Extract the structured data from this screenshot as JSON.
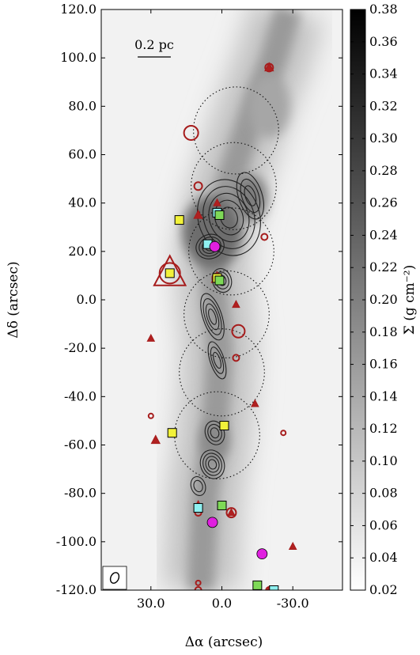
{
  "chart_data": {
    "type": "heatmap",
    "title": "",
    "xlabel": "Δα (arcsec)",
    "ylabel": "Δδ (arcsec)",
    "xlim": [
      51,
      -51
    ],
    "ylim": [
      -120,
      120
    ],
    "x_ticks": [
      {
        "value": 30,
        "label": "30.0"
      },
      {
        "value": 0,
        "label": "0.0"
      },
      {
        "value": -30,
        "label": "-30.0"
      }
    ],
    "y_ticks": [
      {
        "value": 120,
        "label": "120.0"
      },
      {
        "value": 100,
        "label": "100.0"
      },
      {
        "value": 80,
        "label": "80.0"
      },
      {
        "value": 60,
        "label": "60.0"
      },
      {
        "value": 40,
        "label": "40.0"
      },
      {
        "value": 20,
        "label": "20.0"
      },
      {
        "value": 0,
        "label": "0.0"
      },
      {
        "value": -20,
        "label": "-20.0"
      },
      {
        "value": -40,
        "label": "-40.0"
      },
      {
        "value": -60,
        "label": "-60.0"
      },
      {
        "value": -80,
        "label": "-80.0"
      },
      {
        "value": -100,
        "label": "-100.0"
      },
      {
        "value": -120,
        "label": "-120.0"
      }
    ],
    "colorbar": {
      "label": "Σ (g cm⁻²)",
      "range": [
        0.02,
        0.38
      ],
      "ticks": [
        "0.38",
        "0.36",
        "0.34",
        "0.32",
        "0.30",
        "0.28",
        "0.26",
        "0.24",
        "0.22",
        "0.20",
        "0.18",
        "0.16",
        "0.14",
        "0.12",
        "0.10",
        "0.08",
        "0.06",
        "0.04",
        "0.02"
      ]
    },
    "scale_bar": {
      "label": "0.2 pc",
      "length_arcsec": 14
    },
    "filament_ridge": [
      {
        "dd": 120,
        "da": -28
      },
      {
        "dd": 100,
        "da": -22
      },
      {
        "dd": 80,
        "da": -14
      },
      {
        "dd": 60,
        "da": -7
      },
      {
        "dd": 40,
        "da": 0
      },
      {
        "dd": 20,
        "da": 4
      },
      {
        "dd": 0,
        "da": 3
      },
      {
        "dd": -20,
        "da": 1
      },
      {
        "dd": -40,
        "da": 2
      },
      {
        "dd": -60,
        "da": 4
      },
      {
        "dd": -80,
        "da": 7
      },
      {
        "dd": -100,
        "da": 8
      },
      {
        "dd": -120,
        "da": 9
      }
    ],
    "fields": [
      {
        "da": -6,
        "dd": 70,
        "r": 18
      },
      {
        "da": -5,
        "dd": 47,
        "r": 18
      },
      {
        "da": -4,
        "dd": 20,
        "r": 18
      },
      {
        "da": -2,
        "dd": -6,
        "r": 18
      },
      {
        "da": 0,
        "dd": -30,
        "r": 18
      },
      {
        "da": 2,
        "dd": -56,
        "r": 18
      }
    ],
    "contours": [
      {
        "da": -3,
        "dd": 34,
        "w": 13,
        "h": 16,
        "n": 5
      },
      {
        "da": -12,
        "dd": 43,
        "w": 5,
        "h": 10,
        "n": 3
      },
      {
        "da": 5,
        "dd": 22,
        "w": 6,
        "h": 5,
        "n": 4
      },
      {
        "da": 0,
        "dd": 8,
        "w": 4,
        "h": 5,
        "n": 3
      },
      {
        "da": 4,
        "dd": -7,
        "w": 4,
        "h": 10,
        "n": 4
      },
      {
        "da": 2,
        "dd": -25,
        "w": 3,
        "h": 8,
        "n": 3
      },
      {
        "da": 3,
        "dd": -55,
        "w": 4,
        "h": 5,
        "n": 3
      },
      {
        "da": 4,
        "dd": -68,
        "w": 5,
        "h": 6,
        "n": 4
      },
      {
        "da": 10,
        "dd": -77,
        "w": 3,
        "h": 4,
        "n": 2
      }
    ],
    "circles_red": [
      {
        "da": -20,
        "dd": 96,
        "s": 5
      },
      {
        "da": 13,
        "dd": 69,
        "s": 9
      },
      {
        "da": 10,
        "dd": 47,
        "s": 5
      },
      {
        "da": -18,
        "dd": 26,
        "s": 4
      },
      {
        "da": 22,
        "dd": 11,
        "s": 13
      },
      {
        "da": 2,
        "dd": 9,
        "s": 6
      },
      {
        "da": -7,
        "dd": -13,
        "s": 8
      },
      {
        "da": -6,
        "dd": -24,
        "s": 4
      },
      {
        "da": 30,
        "dd": -48,
        "s": 3
      },
      {
        "da": -26,
        "dd": -55,
        "s": 3
      },
      {
        "da": 10,
        "dd": -88,
        "s": 4
      },
      {
        "da": -4,
        "dd": -88,
        "s": 6
      },
      {
        "da": 10,
        "dd": -117,
        "s": 3
      },
      {
        "da": 10,
        "dd": -120,
        "s": 4
      },
      {
        "da": -20,
        "dd": -120,
        "s": 4
      }
    ],
    "triangles_red": [
      {
        "da": -20,
        "dd": 96,
        "s": 6
      },
      {
        "da": 10,
        "dd": 35,
        "s": 6
      },
      {
        "da": 2,
        "dd": 40,
        "s": 5
      },
      {
        "da": 22,
        "dd": 11,
        "s": 22
      },
      {
        "da": 2,
        "dd": 9,
        "s": 8
      },
      {
        "da": -6,
        "dd": -2,
        "s": 5
      },
      {
        "da": 30,
        "dd": -16,
        "s": 5
      },
      {
        "da": -14,
        "dd": -43,
        "s": 5
      },
      {
        "da": 28,
        "dd": -58,
        "s": 6
      },
      {
        "da": -4,
        "dd": -88,
        "s": 5
      },
      {
        "da": 10,
        "dd": -85,
        "s": 6
      },
      {
        "da": -30,
        "dd": -102,
        "s": 5
      },
      {
        "da": -20,
        "dd": -120,
        "s": 5
      }
    ],
    "squares_yellow": [
      {
        "da": 18,
        "dd": 33
      },
      {
        "da": 22,
        "dd": 11
      },
      {
        "da": 2,
        "dd": 9
      },
      {
        "da": -1,
        "dd": -52
      },
      {
        "da": 21,
        "dd": -55
      }
    ],
    "squares_cyan": [
      {
        "da": 6,
        "dd": 23
      },
      {
        "da": 2,
        "dd": 36
      },
      {
        "da": 10,
        "dd": -86
      },
      {
        "da": -22,
        "dd": -120
      }
    ],
    "squares_green": [
      {
        "da": 1,
        "dd": 35
      },
      {
        "da": 1,
        "dd": 8
      },
      {
        "da": 0,
        "dd": -85
      },
      {
        "da": -15,
        "dd": -118
      }
    ],
    "dots_magenta": [
      {
        "da": 3,
        "dd": 22
      },
      {
        "da": 4,
        "dd": -92
      },
      {
        "da": -17,
        "dd": -105
      }
    ]
  }
}
